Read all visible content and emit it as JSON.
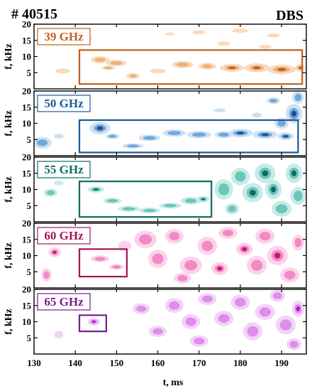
{
  "header": {
    "shot": "# 40515",
    "diagnostic": "DBS"
  },
  "chart_data": {
    "type": "heatmap",
    "xlabel": "t, ms",
    "ylabel": "f, kHz",
    "xlim": [
      130,
      196
    ],
    "ylim": [
      0,
      20
    ],
    "x_ticks": [
      "130",
      "140",
      "150",
      "160",
      "170",
      "180",
      "190"
    ],
    "y_ticks": [
      "5",
      "10",
      "15",
      "20"
    ],
    "panels": [
      {
        "label": "39 GHz",
        "color": "#c0601c",
        "shades": [
          "#f8dcc0",
          "#eeb07a",
          "#c0601c"
        ],
        "box": {
          "t": [
            141,
            195
          ],
          "f": [
            1.5,
            12
          ]
        },
        "blobs": [
          [
            137,
            5.5,
            2.2,
            1.0,
            0.7
          ],
          [
            146,
            9.0,
            2.5,
            1.2,
            1.0
          ],
          [
            148,
            6.5,
            2.0,
            0.8,
            0.8
          ],
          [
            150,
            8.0,
            3.0,
            1.2,
            0.8
          ],
          [
            154,
            4.0,
            2.0,
            1.0,
            0.8
          ],
          [
            160,
            5.5,
            2.5,
            1.0,
            0.6
          ],
          [
            166,
            7.5,
            3.0,
            1.3,
            0.9
          ],
          [
            172,
            7.0,
            2.5,
            1.2,
            0.9
          ],
          [
            178,
            6.5,
            3.0,
            1.2,
            1.3
          ],
          [
            184,
            6.5,
            3.0,
            1.4,
            1.6
          ],
          [
            190,
            6.0,
            3.5,
            1.5,
            1.6
          ],
          [
            194.5,
            6.5,
            1.2,
            1.2,
            2.2
          ],
          [
            163,
            17.0,
            1.5,
            0.6,
            0.6
          ],
          [
            170,
            17.5,
            2.0,
            0.8,
            0.7
          ],
          [
            180,
            18.0,
            2.5,
            0.8,
            0.7
          ],
          [
            188,
            16.5,
            2.0,
            0.8,
            0.6
          ],
          [
            143,
            15.5,
            1.5,
            0.7,
            0.6
          ],
          [
            176,
            14.0,
            2.0,
            0.9,
            0.7
          ],
          [
            186,
            13.0,
            2.0,
            0.8,
            0.6
          ]
        ]
      },
      {
        "label": "50 GHz",
        "color": "#1a5a96",
        "shades": [
          "#cfe2f3",
          "#6fa8dc",
          "#1c4f86"
        ],
        "box": {
          "t": [
            141,
            194
          ],
          "f": [
            1,
            11
          ]
        },
        "blobs": [
          [
            132,
            4.0,
            2.5,
            2.0,
            1.0
          ],
          [
            136,
            6.0,
            1.5,
            1.0,
            0.6
          ],
          [
            146,
            8.5,
            2.5,
            2.0,
            1.6
          ],
          [
            149,
            6.0,
            2.0,
            1.0,
            0.8
          ],
          [
            154,
            3.0,
            3.0,
            0.9,
            0.9
          ],
          [
            158,
            5.5,
            3.0,
            1.1,
            1.0
          ],
          [
            164,
            7.0,
            3.0,
            1.2,
            1.1
          ],
          [
            170,
            6.5,
            3.0,
            1.2,
            1.2
          ],
          [
            176,
            6.5,
            2.5,
            1.2,
            1.0
          ],
          [
            180,
            7.0,
            3.0,
            1.3,
            1.4
          ],
          [
            186,
            6.5,
            3.0,
            1.3,
            1.3
          ],
          [
            191,
            6.0,
            2.0,
            1.2,
            1.6
          ],
          [
            193,
            13.0,
            2.0,
            3.0,
            1.3
          ],
          [
            194,
            18.0,
            1.5,
            2.0,
            1.2
          ],
          [
            188,
            17.0,
            2.0,
            1.2,
            0.8
          ],
          [
            184,
            12.5,
            1.5,
            1.0,
            0.7
          ],
          [
            190,
            10.0,
            2.0,
            2.0,
            0.9
          ],
          [
            175,
            14.0,
            2.0,
            0.8,
            0.6
          ]
        ]
      },
      {
        "label": "55 GHz",
        "color": "#0e6b62",
        "shades": [
          "#c7ebe6",
          "#6cc5bb",
          "#0d6a61"
        ],
        "box": {
          "t": [
            141,
            173
          ],
          "f": [
            1.5,
            12.5
          ]
        },
        "blobs": [
          [
            134,
            9.0,
            2.0,
            1.5,
            0.8
          ],
          [
            136,
            12.0,
            1.5,
            1.0,
            0.6
          ],
          [
            145,
            10.0,
            2.0,
            1.0,
            1.3
          ],
          [
            149,
            6.5,
            2.5,
            1.0,
            1.0
          ],
          [
            153,
            4.0,
            3.0,
            1.0,
            1.0
          ],
          [
            158,
            3.5,
            3.0,
            1.0,
            0.9
          ],
          [
            163,
            5.0,
            3.0,
            1.0,
            1.0
          ],
          [
            168,
            6.5,
            2.5,
            1.2,
            1.2
          ],
          [
            171,
            7.0,
            1.5,
            1.0,
            1.7
          ],
          [
            176,
            10.0,
            2.5,
            3.5,
            1.0
          ],
          [
            180,
            14.0,
            2.5,
            3.0,
            1.0
          ],
          [
            183,
            9.0,
            2.5,
            3.0,
            1.3
          ],
          [
            186,
            15.0,
            2.5,
            3.0,
            1.5
          ],
          [
            188,
            10.0,
            2.0,
            3.0,
            1.7
          ],
          [
            190,
            4.0,
            2.5,
            2.5,
            1.2
          ],
          [
            193,
            15.0,
            2.0,
            3.0,
            1.3
          ],
          [
            194,
            8.0,
            2.0,
            3.0,
            1.1
          ],
          [
            178,
            4.0,
            2.0,
            2.0,
            0.9
          ]
        ]
      },
      {
        "label": "60 GHz",
        "color": "#a4145a",
        "shades": [
          "#fbd3ea",
          "#f08ac4",
          "#c91474"
        ],
        "box": {
          "t": [
            141,
            152.5
          ],
          "f": [
            3.5,
            12
          ]
        },
        "blobs": [
          [
            135,
            11.0,
            1.5,
            1.5,
            1.3
          ],
          [
            133,
            4.0,
            1.5,
            2.5,
            0.8
          ],
          [
            146,
            9.0,
            2.5,
            1.2,
            1.0
          ],
          [
            150,
            6.5,
            2.0,
            1.0,
            1.0
          ],
          [
            157,
            15.0,
            3.0,
            3.0,
            1.0
          ],
          [
            160,
            9.0,
            2.5,
            3.0,
            1.1
          ],
          [
            164,
            16.0,
            2.5,
            2.5,
            1.0
          ],
          [
            168,
            7.0,
            3.0,
            3.0,
            1.0
          ],
          [
            172,
            13.0,
            2.5,
            3.0,
            1.1
          ],
          [
            175,
            6.0,
            2.0,
            2.0,
            1.4
          ],
          [
            177,
            17.0,
            2.5,
            2.0,
            1.0
          ],
          [
            181,
            12.0,
            2.0,
            2.0,
            1.6
          ],
          [
            184,
            7.0,
            2.5,
            3.0,
            1.2
          ],
          [
            186,
            16.0,
            2.5,
            2.5,
            1.1
          ],
          [
            189,
            10.0,
            2.5,
            3.0,
            1.3
          ],
          [
            192,
            4.0,
            2.5,
            2.5,
            1.1
          ],
          [
            194,
            14.0,
            1.5,
            2.5,
            1.2
          ],
          [
            166,
            3.0,
            2.5,
            2.0,
            0.8
          ],
          [
            152,
            13.0,
            2.0,
            2.0,
            0.7
          ]
        ]
      },
      {
        "label": "65 GHz",
        "color": "#7a1a8e",
        "shades": [
          "#f2d3f7",
          "#df8cec",
          "#a422bd"
        ],
        "box": {
          "t": [
            141,
            147.5
          ],
          "f": [
            7,
            12
          ]
        },
        "blobs": [
          [
            144.5,
            10.0,
            1.5,
            1.2,
            1.8
          ],
          [
            138,
            16.0,
            2.0,
            2.0,
            0.8
          ],
          [
            136,
            6.0,
            1.5,
            1.5,
            0.6
          ],
          [
            156,
            14.0,
            2.5,
            2.0,
            0.8
          ],
          [
            160,
            7.0,
            2.5,
            2.0,
            0.9
          ],
          [
            164,
            15.0,
            2.5,
            2.5,
            1.0
          ],
          [
            168,
            10.0,
            2.5,
            2.5,
            1.0
          ],
          [
            170,
            4.0,
            2.5,
            2.0,
            1.0
          ],
          [
            172,
            17.0,
            2.5,
            2.0,
            1.0
          ],
          [
            176,
            11.0,
            2.5,
            2.5,
            1.1
          ],
          [
            180,
            16.0,
            2.5,
            2.5,
            1.1
          ],
          [
            183,
            7.0,
            2.5,
            3.0,
            1.1
          ],
          [
            186,
            13.0,
            2.5,
            2.5,
            1.2
          ],
          [
            189,
            18.0,
            2.0,
            2.0,
            1.1
          ],
          [
            191,
            9.0,
            2.5,
            3.0,
            1.2
          ],
          [
            194,
            14.0,
            1.5,
            2.5,
            1.3
          ],
          [
            193,
            3.0,
            2.0,
            2.0,
            1.0
          ]
        ]
      }
    ]
  }
}
